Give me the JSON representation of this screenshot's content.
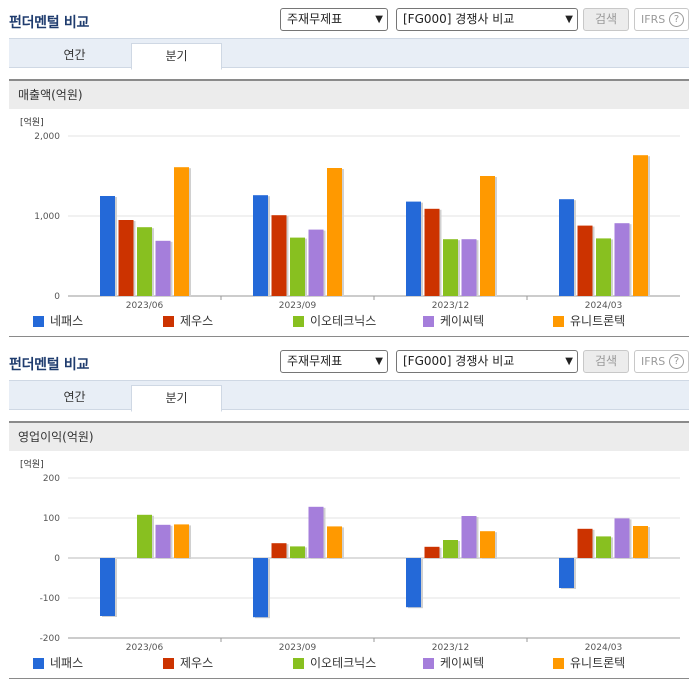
{
  "colors": {
    "네패스": "#2469d8",
    "제우스": "#cc3300",
    "이오테크닉스": "#88c020",
    "케이씨텍": "#a57edb",
    "유니트론텍": "#ff9900"
  },
  "panels": [
    {
      "title": "펀더멘털 비교",
      "select1": "주재무제표",
      "select2": "[FG000] 경쟁사 비교",
      "search_label": "검색",
      "ifrs_label": "IFRS",
      "ifrs_help": "?",
      "tabs": [
        "연간",
        "분기"
      ],
      "subheading": "매출액(억원)"
    },
    {
      "title": "펀더멘털 비교",
      "select1": "주재무제표",
      "select2": "[FG000] 경쟁사 비교",
      "search_label": "검색",
      "ifrs_label": "IFRS",
      "ifrs_help": "?",
      "tabs": [
        "연간",
        "분기"
      ],
      "subheading": "영업이익(억원)"
    }
  ],
  "chart_data": [
    {
      "type": "bar",
      "unit_label": "[억원]",
      "categories": [
        "2023/06",
        "2023/09",
        "2023/12",
        "2024/03"
      ],
      "ylim": [
        0,
        2000
      ],
      "yticks": [
        0,
        1000,
        2000
      ],
      "ytick_labels": [
        "0",
        "1,000",
        "2,000"
      ],
      "grid": true,
      "legend": "bottom",
      "series": [
        {
          "name": "네패스",
          "values": [
            1250,
            1260,
            1180,
            1210
          ]
        },
        {
          "name": "제우스",
          "values": [
            950,
            1010,
            1090,
            880
          ]
        },
        {
          "name": "이오테크닉스",
          "values": [
            860,
            730,
            710,
            720
          ]
        },
        {
          "name": "케이씨텍",
          "values": [
            690,
            830,
            710,
            910
          ]
        },
        {
          "name": "유니트론텍",
          "values": [
            1610,
            1600,
            1500,
            1760
          ]
        }
      ]
    },
    {
      "type": "bar",
      "unit_label": "[억원]",
      "categories": [
        "2023/06",
        "2023/09",
        "2023/12",
        "2024/03"
      ],
      "ylim": [
        -200,
        200
      ],
      "yticks": [
        -200,
        -100,
        0,
        100,
        200
      ],
      "ytick_labels": [
        "-200",
        "-100",
        "0",
        "100",
        "200"
      ],
      "grid": true,
      "legend": "bottom",
      "series": [
        {
          "name": "네패스",
          "values": [
            -145,
            -148,
            -123,
            -75
          ]
        },
        {
          "name": "제우스",
          "values": [
            0,
            37,
            28,
            73
          ]
        },
        {
          "name": "이오테크닉스",
          "values": [
            108,
            29,
            45,
            54
          ]
        },
        {
          "name": "케이씨텍",
          "values": [
            83,
            128,
            105,
            99
          ]
        },
        {
          "name": "유니트론텍",
          "values": [
            84,
            79,
            67,
            80
          ]
        }
      ]
    }
  ]
}
